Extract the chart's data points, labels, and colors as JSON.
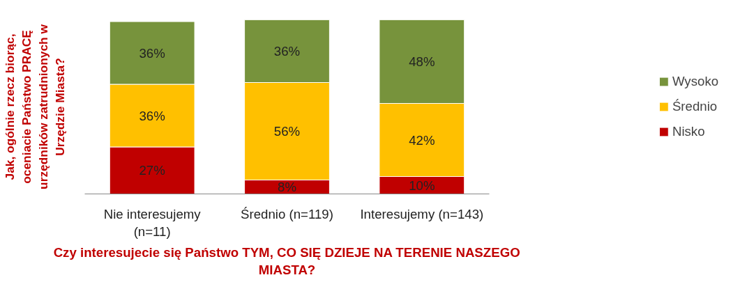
{
  "chart_data": {
    "type": "bar",
    "stacked": true,
    "xlabel": "Czy interesujecie się Państwo TYM, CO SIĘ DZIEJE NA TERENIE NASZEGO MIASTA?",
    "ylabel": "Jak, ogólnie rzecz biorąc, oceniacie Państwo PRACĘ urzędników zatrudnionych w Urzędzie Miasta?",
    "categories": [
      "Nie interesujemy (n=11)",
      "Średnio (n=119)",
      "Interesujemy (n=143)"
    ],
    "series": [
      {
        "name": "Nisko",
        "color": "#c00000",
        "values": [
          27,
          8,
          10
        ],
        "value_labels": [
          "27%",
          "8%",
          "10%"
        ]
      },
      {
        "name": "Średnio",
        "color": "#ffc000",
        "values": [
          36,
          56,
          42
        ],
        "value_labels": [
          "36%",
          "56%",
          "42%"
        ]
      },
      {
        "name": "Wysoko",
        "color": "#77933c",
        "values": [
          36,
          36,
          48
        ],
        "value_labels": [
          "36%",
          "36%",
          "48%"
        ]
      }
    ],
    "ylim": [
      0,
      100
    ],
    "tick_labels": "x",
    "grid": false,
    "legend": "right"
  }
}
